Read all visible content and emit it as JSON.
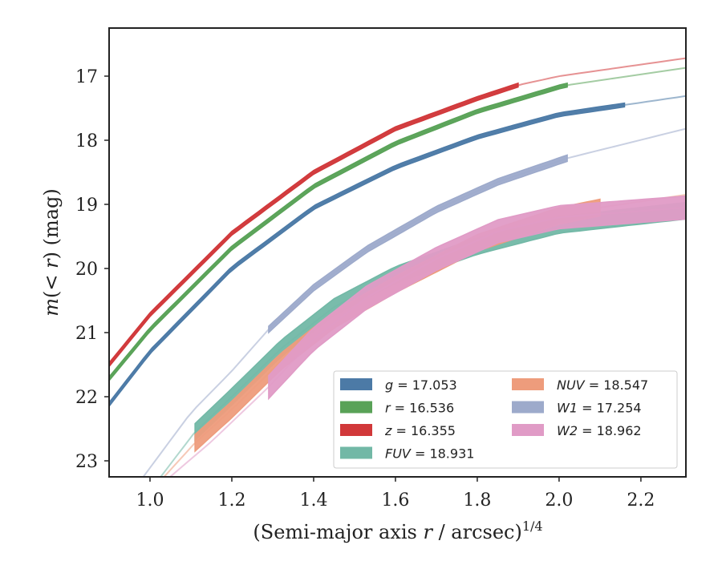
{
  "chart_data": {
    "type": "line",
    "xlabel": "(Semi-major axis r / arcsec)^1/4",
    "ylabel": "m(<r) (mag)",
    "xlim": [
      0.9,
      2.31
    ],
    "ylim": [
      23.25,
      16.25
    ],
    "y_inverted": true,
    "grid": false,
    "legend_position": "bottom-right",
    "xticks": [
      1.0,
      1.2,
      1.4,
      1.6,
      1.8,
      2.0,
      2.2
    ],
    "xtick_labels": [
      "1.0",
      "1.2",
      "1.4",
      "1.6",
      "1.8",
      "2.0",
      "2.2"
    ],
    "yticks": [
      17,
      18,
      19,
      20,
      21,
      22,
      23
    ],
    "ytick_labels": [
      "17",
      "18",
      "19",
      "20",
      "21",
      "22",
      "23"
    ],
    "series": [
      {
        "key": "g",
        "name": "g",
        "value": "17.053",
        "color": "#4c7aa6",
        "data_x0": 0.9,
        "data_x1": 2.16,
        "band": 0.03,
        "x": [
          0.9,
          1.0,
          1.2,
          1.4,
          1.6,
          1.8,
          2.0,
          2.16,
          2.31
        ],
        "y": [
          22.12,
          21.3,
          20.0,
          19.05,
          18.42,
          17.95,
          17.6,
          17.45,
          17.31
        ]
      },
      {
        "key": "r",
        "name": "r",
        "value": "16.536",
        "color": "#59a257",
        "data_x0": 0.9,
        "data_x1": 2.02,
        "band": 0.03,
        "x": [
          0.9,
          1.0,
          1.2,
          1.4,
          1.6,
          1.8,
          2.0,
          2.02,
          2.31
        ],
        "y": [
          21.72,
          20.95,
          19.68,
          18.72,
          18.05,
          17.55,
          17.17,
          17.14,
          16.87
        ]
      },
      {
        "key": "z",
        "name": "z",
        "value": "16.355",
        "color": "#d1383a",
        "data_x0": 0.9,
        "data_x1": 1.9,
        "band": 0.03,
        "x": [
          0.9,
          1.0,
          1.2,
          1.4,
          1.6,
          1.8,
          1.9,
          2.0,
          2.31
        ],
        "y": [
          21.5,
          20.72,
          19.45,
          18.5,
          17.82,
          17.35,
          17.14,
          17.0,
          16.72
        ]
      },
      {
        "key": "FUV",
        "name": "FUV",
        "value": "18.931",
        "color": "#72b8a6",
        "data_x0": 1.11,
        "data_x1": 2.31,
        "band": 0.13,
        "x": [
          1.02,
          1.11,
          1.2,
          1.32,
          1.45,
          1.6,
          1.8,
          2.0,
          2.31
        ],
        "y": [
          23.3,
          22.55,
          22.0,
          21.25,
          20.6,
          20.1,
          19.65,
          19.32,
          19.1
        ]
      },
      {
        "key": "NUV",
        "name": "NUV",
        "value": "18.547",
        "color": "#ee9c7c",
        "data_x0": 1.11,
        "data_x1": 2.1,
        "band": 0.13,
        "x": [
          1.02,
          1.11,
          1.2,
          1.32,
          1.45,
          1.6,
          1.8,
          2.0,
          2.1,
          2.31
        ],
        "y": [
          23.35,
          22.72,
          22.2,
          21.45,
          20.8,
          20.25,
          19.6,
          19.18,
          19.05,
          18.85
        ]
      },
      {
        "key": "W1",
        "name": "W1",
        "value": "17.254",
        "color": "#9daacb",
        "data_x0": 1.29,
        "data_x1": 2.02,
        "band": 0.05,
        "x": [
          0.98,
          1.1,
          1.2,
          1.29,
          1.4,
          1.53,
          1.7,
          1.85,
          2.02,
          2.31
        ],
        "y": [
          23.28,
          22.25,
          21.6,
          20.95,
          20.3,
          19.7,
          19.08,
          18.65,
          18.28,
          17.82
        ]
      },
      {
        "key": "W2",
        "name": "W2",
        "value": "18.962",
        "color": "#e09bc6",
        "data_x0": 1.29,
        "data_x1": 2.31,
        "band": 0.18,
        "x": [
          1.04,
          1.15,
          1.29,
          1.4,
          1.53,
          1.7,
          1.85,
          2.0,
          2.31
        ],
        "y": [
          23.3,
          22.7,
          21.85,
          21.1,
          20.45,
          19.85,
          19.42,
          19.2,
          19.05
        ]
      }
    ],
    "legend_columns": [
      [
        "g",
        "r",
        "z",
        "FUV"
      ],
      [
        "NUV",
        "W1",
        "W2"
      ]
    ]
  }
}
